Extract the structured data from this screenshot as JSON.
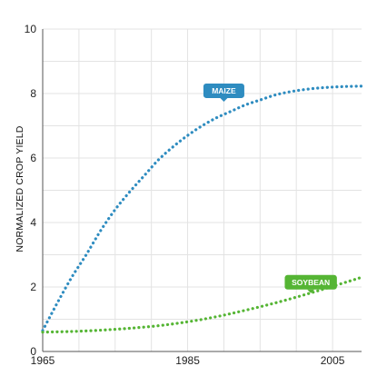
{
  "chart_data": {
    "type": "line",
    "title": "",
    "xlabel": "",
    "ylabel": "NORMALIZED CROP YIELD",
    "xlim": [
      1965,
      2009
    ],
    "ylim": [
      0,
      10
    ],
    "x_ticks": [
      1965,
      1985,
      2005
    ],
    "y_ticks": [
      0,
      2,
      4,
      6,
      8,
      10
    ],
    "grid": true,
    "series": [
      {
        "name": "MAIZE",
        "color": "#2E8CC0",
        "style": "dotted",
        "x": [
          1965,
          1967,
          1969,
          1971,
          1973,
          1975,
          1977,
          1979,
          1981,
          1983,
          1985,
          1987,
          1989,
          1991,
          1993,
          1995,
          1997,
          1999,
          2001,
          2003,
          2005,
          2007,
          2009
        ],
        "y": [
          0.65,
          1.5,
          2.3,
          3.0,
          3.75,
          4.4,
          4.95,
          5.45,
          5.95,
          6.35,
          6.7,
          7.0,
          7.25,
          7.45,
          7.65,
          7.8,
          7.95,
          8.05,
          8.12,
          8.17,
          8.2,
          8.22,
          8.23
        ]
      },
      {
        "name": "SOYBEAN",
        "color": "#55B534",
        "style": "dotted",
        "x": [
          1965,
          1969,
          1973,
          1977,
          1981,
          1985,
          1989,
          1993,
          1997,
          2001,
          2005,
          2009
        ],
        "y": [
          0.6,
          0.62,
          0.66,
          0.72,
          0.8,
          0.92,
          1.08,
          1.28,
          1.5,
          1.75,
          2.02,
          2.3
        ]
      }
    ],
    "callouts": [
      {
        "series": "MAIZE",
        "label": "MAIZE",
        "color": "#2E8CC0",
        "x": 1990,
        "y": 7.72
      },
      {
        "series": "SOYBEAN",
        "label": "SOYBEAN",
        "color": "#55B534",
        "x": 2002,
        "y": 1.78
      }
    ]
  }
}
